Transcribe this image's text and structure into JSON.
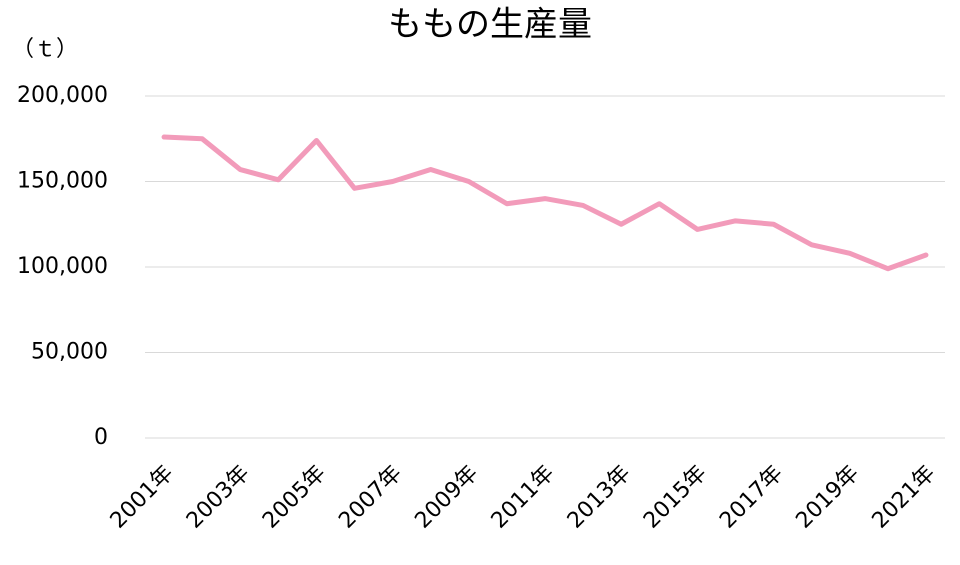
{
  "chart_data": {
    "type": "line",
    "title": "ももの生産量",
    "y_unit": "（ｔ）",
    "categories": [
      "2001年",
      null,
      "2003年",
      null,
      "2005年",
      null,
      "2007年",
      null,
      "2009年",
      null,
      "2011年",
      null,
      "2013年",
      null,
      "2015年",
      null,
      "2017年",
      null,
      "2019年",
      null,
      "2021年"
    ],
    "series": [
      {
        "name": "もも",
        "color": "#f29bba",
        "values": [
          176000,
          175000,
          157000,
          151000,
          174000,
          146000,
          150000,
          157000,
          150000,
          137000,
          140000,
          136000,
          125000,
          137000,
          122000,
          127000,
          125000,
          113000,
          108000,
          99000,
          107000
        ]
      }
    ],
    "ylim": [
      0,
      200000
    ],
    "yticks": [
      0,
      {
        "value": 50000,
        "label": "50,000"
      },
      {
        "value": 100000,
        "label": "100,000"
      },
      {
        "value": 150000,
        "label": "150,000"
      },
      {
        "value": 200000,
        "label": "200,000"
      }
    ],
    "grid": true
  }
}
